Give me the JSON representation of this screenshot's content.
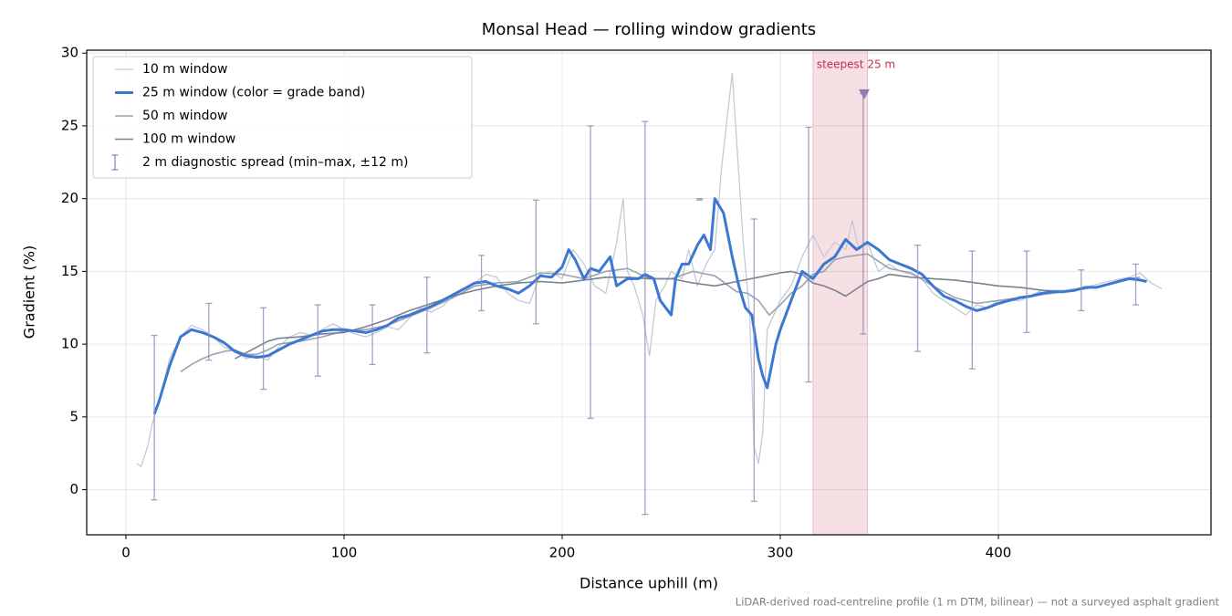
{
  "chart_data": {
    "type": "line",
    "title": "Monsal Head — rolling window gradients",
    "x_label": "Distance uphill (m)",
    "y_label": "Gradient (%)",
    "footnote": "LiDAR-derived road-centreline profile (1 m DTM, bilinear) — not a surveyed asphalt gradient",
    "xlim": [
      -18,
      497.5
    ],
    "ylim": [
      -3.1,
      30.2
    ],
    "xticks": [
      0,
      100,
      200,
      300,
      400
    ],
    "yticks": [
      0,
      5,
      10,
      15,
      20,
      25,
      30
    ],
    "grid": true,
    "legend": "upper left",
    "series": [
      {
        "name": "10 m window",
        "color": "#c3cad4",
        "width": 1.3,
        "x": [
          5,
          7,
          10,
          12,
          15,
          20,
          25,
          30,
          35,
          40,
          45,
          50,
          55,
          60,
          65,
          70,
          75,
          80,
          85,
          90,
          95,
          100,
          105,
          110,
          115,
          120,
          125,
          130,
          135,
          140,
          145,
          150,
          155,
          160,
          165,
          170,
          175,
          180,
          185,
          190,
          195,
          200,
          205,
          210,
          215,
          220,
          225,
          228,
          230,
          233,
          237,
          240,
          243,
          247,
          250,
          255,
          258,
          262,
          266,
          270,
          273,
          276,
          278,
          280,
          283,
          286,
          288,
          290,
          292,
          294,
          297,
          300,
          305,
          310,
          315,
          320,
          325,
          330,
          333,
          336,
          340,
          345,
          350,
          355,
          360,
          365,
          370,
          375,
          380,
          385,
          390,
          395,
          400,
          410,
          420,
          430,
          440,
          450,
          460,
          465,
          470,
          475
        ],
        "values": [
          1.8,
          1.6,
          3.0,
          4.5,
          6.0,
          9.0,
          10.5,
          11.3,
          11.0,
          10.5,
          9.8,
          9.5,
          9.0,
          9.2,
          8.9,
          9.8,
          10.5,
          10.8,
          10.6,
          11.0,
          11.4,
          11.0,
          10.7,
          10.5,
          10.8,
          11.2,
          11.0,
          11.8,
          12.5,
          12.2,
          12.6,
          13.3,
          13.6,
          14.2,
          14.8,
          14.6,
          13.5,
          13.0,
          12.8,
          14.8,
          15.0,
          14.5,
          16.5,
          15.5,
          14.0,
          13.5,
          17.0,
          20.0,
          15.0,
          14.0,
          12.0,
          9.2,
          13.0,
          14.0,
          15.0,
          14.5,
          16.5,
          14.0,
          15.5,
          16.5,
          22.0,
          26.0,
          28.6,
          24.0,
          17.0,
          12.0,
          3.0,
          1.8,
          4.0,
          11.0,
          12.0,
          13.0,
          14.0,
          16.0,
          17.5,
          16.0,
          17.0,
          16.5,
          18.5,
          16.5,
          17.0,
          15.0,
          15.5,
          15.0,
          14.8,
          14.5,
          13.5,
          13.0,
          12.5,
          12.0,
          12.7,
          12.5,
          13.0,
          13.0,
          13.7,
          13.7,
          13.9,
          14.3,
          14.6,
          14.9,
          14.2,
          13.8
        ]
      },
      {
        "name": "25 m window (color = grade band)",
        "color": "#3a78d4",
        "width": 3,
        "x": [
          13,
          15,
          20,
          25,
          30,
          35,
          40,
          45,
          50,
          55,
          60,
          65,
          70,
          75,
          80,
          85,
          90,
          95,
          100,
          105,
          110,
          115,
          120,
          125,
          130,
          135,
          140,
          145,
          150,
          155,
          160,
          165,
          170,
          175,
          180,
          185,
          190,
          195,
          200,
          203,
          206,
          210,
          213,
          217,
          222,
          225,
          230,
          235,
          238,
          242,
          245,
          250,
          252,
          255,
          258,
          262,
          265,
          268,
          270,
          274,
          278,
          281,
          284,
          287,
          290,
          292,
          294,
          296,
          298,
          300,
          305,
          310,
          315,
          320,
          325,
          330,
          335,
          340,
          345,
          350,
          355,
          360,
          365,
          370,
          375,
          380,
          385,
          390,
          395,
          400,
          405,
          410,
          415,
          420,
          425,
          430,
          435,
          440,
          445,
          450,
          455,
          460,
          465,
          468
        ],
        "values": [
          5.2,
          6.0,
          8.5,
          10.5,
          11.0,
          10.8,
          10.5,
          10.1,
          9.5,
          9.2,
          9.1,
          9.2,
          9.6,
          10.0,
          10.3,
          10.6,
          10.9,
          11.0,
          11.0,
          10.9,
          10.8,
          11.0,
          11.3,
          11.8,
          12.0,
          12.3,
          12.6,
          13.0,
          13.4,
          13.8,
          14.2,
          14.3,
          14.0,
          13.8,
          13.5,
          14.0,
          14.7,
          14.6,
          15.3,
          16.5,
          15.8,
          14.5,
          15.2,
          15.0,
          16.0,
          14.0,
          14.5,
          14.5,
          14.8,
          14.5,
          13.0,
          12.0,
          14.5,
          15.5,
          15.5,
          16.8,
          17.5,
          16.5,
          20.0,
          19.0,
          16.0,
          14.0,
          12.5,
          12.0,
          9.0,
          7.8,
          7.0,
          8.5,
          10.0,
          11.0,
          13.0,
          15.0,
          14.5,
          15.5,
          16.0,
          17.2,
          16.5,
          17.0,
          16.5,
          15.8,
          15.5,
          15.2,
          14.8,
          14.0,
          13.3,
          13.0,
          12.6,
          12.3,
          12.5,
          12.8,
          13.0,
          13.2,
          13.3,
          13.5,
          13.6,
          13.6,
          13.7,
          13.9,
          13.9,
          14.1,
          14.3,
          14.5,
          14.4,
          14.3
        ]
      },
      {
        "name": "50 m window",
        "color": "#9aa3b0",
        "width": 1.6,
        "x": [
          25,
          30,
          35,
          40,
          45,
          50,
          55,
          60,
          65,
          70,
          80,
          90,
          100,
          110,
          120,
          130,
          140,
          150,
          160,
          170,
          180,
          190,
          200,
          210,
          220,
          230,
          240,
          250,
          260,
          270,
          280,
          285,
          290,
          295,
          300,
          305,
          310,
          315,
          320,
          325,
          330,
          335,
          340,
          345,
          350,
          360,
          370,
          380,
          390,
          400,
          410,
          420,
          430,
          440,
          450,
          460,
          465
        ],
        "values": [
          8.1,
          8.6,
          9.0,
          9.3,
          9.5,
          9.6,
          9.3,
          9.3,
          9.6,
          10.0,
          10.2,
          10.5,
          10.9,
          11.0,
          11.3,
          11.9,
          12.5,
          13.2,
          14.0,
          14.2,
          14.3,
          14.9,
          14.8,
          14.5,
          15.0,
          15.2,
          14.5,
          14.5,
          15.0,
          14.7,
          13.6,
          13.5,
          13.0,
          12.0,
          12.7,
          13.5,
          14.0,
          14.8,
          15.0,
          15.8,
          16.0,
          16.1,
          16.2,
          15.7,
          15.2,
          14.9,
          14.0,
          13.2,
          12.8,
          13.0,
          13.2,
          13.4,
          13.6,
          13.8,
          14.1,
          14.5,
          14.6
        ]
      },
      {
        "name": "100 m window",
        "color": "#7a8190",
        "width": 1.6,
        "x": [
          50,
          55,
          60,
          65,
          70,
          80,
          90,
          100,
          110,
          120,
          130,
          140,
          150,
          160,
          170,
          180,
          190,
          200,
          210,
          220,
          230,
          240,
          250,
          260,
          270,
          280,
          290,
          300,
          305,
          310,
          315,
          320,
          325,
          330,
          335,
          340,
          345,
          350,
          360,
          370,
          380,
          390,
          400,
          410,
          420,
          430
        ],
        "values": [
          9.0,
          9.4,
          9.8,
          10.2,
          10.4,
          10.5,
          10.7,
          10.8,
          11.2,
          11.7,
          12.3,
          12.8,
          13.3,
          13.7,
          14.0,
          14.2,
          14.3,
          14.2,
          14.4,
          14.6,
          14.6,
          14.5,
          14.5,
          14.2,
          14.0,
          14.3,
          14.6,
          14.9,
          15.0,
          14.8,
          14.2,
          14.0,
          13.7,
          13.3,
          13.8,
          14.3,
          14.5,
          14.8,
          14.6,
          14.5,
          14.4,
          14.2,
          14.0,
          13.9,
          13.7,
          13.6
        ]
      }
    ],
    "error_bars": {
      "name": "2 m diagnostic spread (min–max, ±12 m)",
      "color": "#9088b8",
      "x": [
        13,
        38,
        63,
        88,
        113,
        138,
        163,
        188,
        213,
        238,
        263,
        288,
        313,
        338,
        363,
        388,
        413,
        438,
        463
      ],
      "low": [
        -0.7,
        8.9,
        6.9,
        7.8,
        8.6,
        9.4,
        12.3,
        11.4,
        4.9,
        -1.7,
        19.9,
        -0.8,
        7.4,
        10.7,
        9.5,
        8.3,
        10.8,
        12.3,
        12.7
      ],
      "high": [
        10.6,
        12.8,
        12.5,
        12.7,
        12.7,
        14.6,
        16.1,
        19.9,
        25.0,
        25.3,
        20.0,
        18.6,
        24.9,
        27.2,
        16.8,
        16.4,
        16.4,
        15.1,
        15.5
      ]
    },
    "highlight": {
      "label": "steepest 25 m",
      "color": "#c0304a",
      "x_range": [
        315,
        340
      ],
      "marker_x": 338.5,
      "marker_y": 27.2,
      "marker_color": "#8e7bb5"
    }
  }
}
